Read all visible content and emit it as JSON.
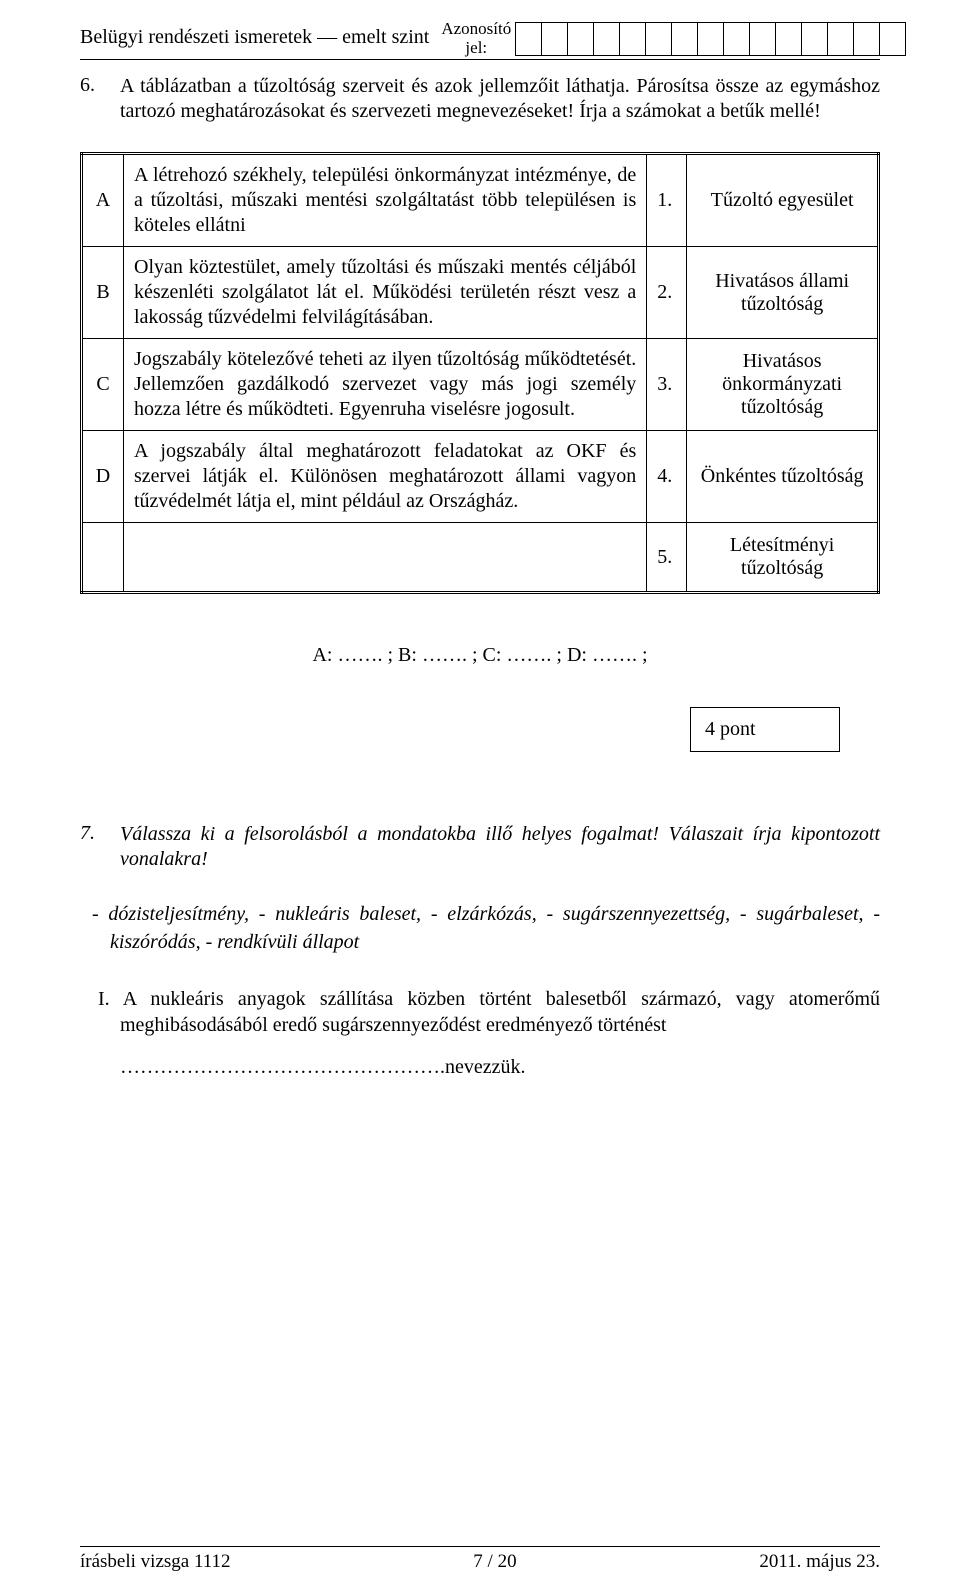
{
  "header": {
    "subject": "Belügyi rendészeti ismeretek — emelt szint",
    "id_label": "Azonosító\njel:",
    "id_cells": 15
  },
  "q6": {
    "number": "6.",
    "text": "A táblázatban a tűzoltóság szerveit és azok jellemzőit láthatja. Párosítsa össze az egymáshoz tartozó meghatározásokat és szervezeti megnevezéseket! Írja a számokat a betűk mellé!"
  },
  "table_rows": [
    {
      "letter": "A",
      "desc": "A létrehozó székhely, települési önkormányzat intézménye, de a tűzoltási, műszaki mentési szolgáltatást több településen is köteles ellátni",
      "num": "1.",
      "name": "Tűzoltó egyesület"
    },
    {
      "letter": "B",
      "desc": "Olyan köztestület, amely tűzoltási és műszaki mentés céljából készenléti szolgálatot lát el. Működési területén részt vesz a lakosság tűzvédelmi felvilágításában.",
      "num": "2.",
      "name": "Hivatásos állami tűzoltóság"
    },
    {
      "letter": "C",
      "desc": "Jogszabály kötelezővé teheti az ilyen tűzoltóság működtetését. Jellemzően gazdálkodó szervezet vagy más jogi személy hozza létre és működteti. Egyenruha viselésre jogosult.",
      "num": "3.",
      "name": "Hivatásos önkormányzati tűzoltóság"
    },
    {
      "letter": "D",
      "desc": "A jogszabály által meghatározott feladatokat az OKF és szervei látják el. Különösen meghatározott állami vagyon tűzvédelmét látja el, mint például az Országház.",
      "num": "4.",
      "name": "Önkéntes tűzoltóság"
    },
    {
      "letter": "",
      "desc": "",
      "num": "5.",
      "name": "Létesítményi tűzoltóság"
    }
  ],
  "answer_line": "A: ……. ;  B: ……. ;  C: ……. ;  D: ……. ;",
  "points_box": "4 pont",
  "q7": {
    "number": "7.",
    "text": "Válassza ki a felsorolásból a mondatokba illő helyes fogalmat! Válaszait írja kipontozott vonalakra!"
  },
  "options_text": "- dózisteljesítmény, - nukleáris baleset, - elzárkózás, - sugárszennyezettség, - sugárbaleset, - kiszóródás, - rendkívüli állapot",
  "sub_i": "I. A nukleáris anyagok szállítása közben történt balesetből származó, vagy atomerőmű meghibásodásából eredő sugárszennyeződést eredményező történést",
  "fill_line": "………………………………………….nevezzük.",
  "footer": {
    "left": "írásbeli vizsga 1112",
    "center": "7 / 20",
    "right": "2011. május 23."
  }
}
